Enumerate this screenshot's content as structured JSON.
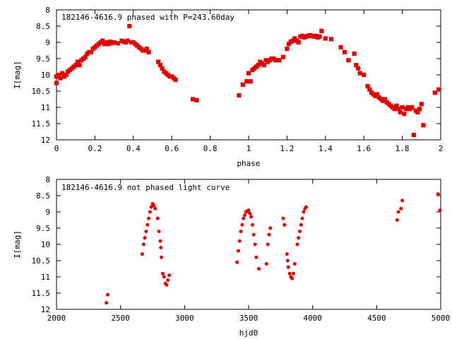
{
  "chart_data": [
    {
      "type": "scatter",
      "title": "182146-4616.9 phased with P=243.60day",
      "xlabel": "phase",
      "ylabel": "I[mag]",
      "xlim": [
        0,
        2
      ],
      "ylim": [
        8,
        12
      ],
      "y_inverted": true,
      "xticks": [
        "0",
        "0.2",
        "0.4",
        "0.6",
        "0.8",
        "1",
        "1.2",
        "1.4",
        "1.6",
        "1.8",
        "2"
      ],
      "yticks": [
        "8",
        "8.5",
        "9",
        "9.5",
        "10",
        "10.5",
        "11",
        "11.5",
        "12"
      ],
      "color": "#e00000",
      "x": [
        0.0,
        0.0,
        0.01,
        0.02,
        0.03,
        0.04,
        0.05,
        0.06,
        0.07,
        0.08,
        0.09,
        0.1,
        0.11,
        0.12,
        0.13,
        0.14,
        0.15,
        0.16,
        0.17,
        0.18,
        0.19,
        0.2,
        0.21,
        0.22,
        0.23,
        0.24,
        0.25,
        0.26,
        0.27,
        0.28,
        0.29,
        0.3,
        0.32,
        0.34,
        0.35,
        0.36,
        0.37,
        0.38,
        0.39,
        0.4,
        0.41,
        0.42,
        0.43,
        0.44,
        0.45,
        0.46,
        0.47,
        0.48,
        0.53,
        0.54,
        0.55,
        0.56,
        0.57,
        0.58,
        0.59,
        0.6,
        0.61,
        0.62,
        0.71,
        0.73,
        0.95,
        0.97,
        0.99,
        1.0,
        1.01,
        1.02,
        1.03,
        1.04,
        1.05,
        1.06,
        1.07,
        1.08,
        1.09,
        1.1,
        1.11,
        1.12,
        1.13,
        1.14,
        1.16,
        1.18,
        1.2,
        1.21,
        1.22,
        1.23,
        1.24,
        1.25,
        1.26,
        1.27,
        1.28,
        1.29,
        1.3,
        1.31,
        1.32,
        1.33,
        1.34,
        1.35,
        1.36,
        1.37,
        1.38,
        1.4,
        1.43,
        1.48,
        1.5,
        1.52,
        1.55,
        1.56,
        1.57,
        1.58,
        1.6,
        1.62,
        1.63,
        1.64,
        1.65,
        1.66,
        1.67,
        1.68,
        1.69,
        1.7,
        1.71,
        1.72,
        1.73,
        1.74,
        1.75,
        1.76,
        1.77,
        1.78,
        1.79,
        1.8,
        1.81,
        1.82,
        1.83,
        1.84,
        1.85,
        1.86,
        1.87,
        1.88,
        1.89,
        1.9,
        1.91,
        1.97,
        1.99
      ],
      "y": [
        10.25,
        10.05,
        10.0,
        10.1,
        9.95,
        10.05,
        10.0,
        9.9,
        9.85,
        9.8,
        9.75,
        9.7,
        9.6,
        9.7,
        9.55,
        9.5,
        9.45,
        9.35,
        9.3,
        9.3,
        9.2,
        9.15,
        9.1,
        9.05,
        9.0,
        8.95,
        9.05,
        9.0,
        9.05,
        8.98,
        9.02,
        9.0,
        9.03,
        8.95,
        8.98,
        9.0,
        8.95,
        8.5,
        9.0,
        9.0,
        9.05,
        9.1,
        9.15,
        9.2,
        9.25,
        9.25,
        9.2,
        9.3,
        9.6,
        9.7,
        9.8,
        9.9,
        9.95,
        10.0,
        10.05,
        10.05,
        10.1,
        10.15,
        10.75,
        10.78,
        10.63,
        10.3,
        10.2,
        9.95,
        10.2,
        9.85,
        9.8,
        9.75,
        9.7,
        9.6,
        9.65,
        9.7,
        9.55,
        9.6,
        9.55,
        9.5,
        9.5,
        9.55,
        9.55,
        9.45,
        9.2,
        9.05,
        8.98,
        8.95,
        8.88,
        8.95,
        9.0,
        8.82,
        8.8,
        8.85,
        8.82,
        8.8,
        8.78,
        8.8,
        8.82,
        8.8,
        8.85,
        8.82,
        8.65,
        8.88,
        8.9,
        9.15,
        9.3,
        9.55,
        9.35,
        9.7,
        9.8,
        9.95,
        10.0,
        10.35,
        10.45,
        10.55,
        10.6,
        10.65,
        10.6,
        10.7,
        10.75,
        10.8,
        10.75,
        10.85,
        10.9,
        10.95,
        11.0,
        11.05,
        10.95,
        11.05,
        11.15,
        11.0,
        11.2,
        11.05,
        11.0,
        11.05,
        11.0,
        11.85,
        11.1,
        11.15,
        11.05,
        10.9,
        11.55,
        10.55,
        10.45
      ]
    },
    {
      "type": "scatter",
      "title": "182146-4616.9 not phased light curve",
      "xlabel": "hjd0",
      "ylabel": "I[mag]",
      "xlim": [
        2000,
        5000
      ],
      "ylim": [
        8,
        12
      ],
      "y_inverted": true,
      "xticks": [
        "2000",
        "2500",
        "3000",
        "3500",
        "4000",
        "4500",
        "5000"
      ],
      "yticks": [
        "8",
        "8.5",
        "9",
        "9.5",
        "10",
        "10.5",
        "11",
        "11.5",
        "12"
      ],
      "color": "#e00000",
      "x": [
        2390,
        2400,
        2670,
        2680,
        2690,
        2700,
        2710,
        2720,
        2730,
        2740,
        2750,
        2760,
        2770,
        2790,
        2800,
        2810,
        2815,
        2820,
        2830,
        2840,
        2850,
        2860,
        2870,
        2880,
        3410,
        3420,
        3430,
        3440,
        3450,
        3460,
        3470,
        3480,
        3490,
        3500,
        3510,
        3520,
        3530,
        3540,
        3550,
        3560,
        3580,
        3640,
        3650,
        3660,
        3670,
        3770,
        3780,
        3800,
        3805,
        3810,
        3820,
        3830,
        3840,
        3850,
        3860,
        3880,
        3890,
        3900,
        3910,
        3920,
        3930,
        3940,
        3950,
        4660,
        4670,
        4690,
        4700,
        4980,
        4995
      ],
      "y": [
        11.8,
        11.55,
        10.3,
        10.0,
        9.8,
        9.6,
        9.4,
        9.2,
        9.0,
        8.85,
        8.75,
        8.8,
        8.9,
        9.2,
        9.6,
        9.9,
        10.1,
        10.4,
        10.9,
        11.0,
        11.2,
        11.25,
        11.1,
        10.95,
        10.55,
        10.2,
        9.9,
        9.6,
        9.4,
        9.2,
        9.1,
        9.0,
        8.98,
        8.95,
        9.05,
        9.15,
        9.4,
        9.7,
        10.0,
        10.4,
        10.75,
        10.6,
        10.0,
        9.7,
        9.5,
        9.2,
        9.4,
        10.3,
        10.5,
        10.7,
        10.9,
        11.0,
        11.05,
        10.9,
        10.6,
        10.0,
        9.8,
        9.6,
        9.4,
        9.2,
        9.0,
        8.9,
        8.85,
        9.25,
        9.0,
        8.9,
        8.65,
        8.45,
        8.95
      ]
    }
  ]
}
